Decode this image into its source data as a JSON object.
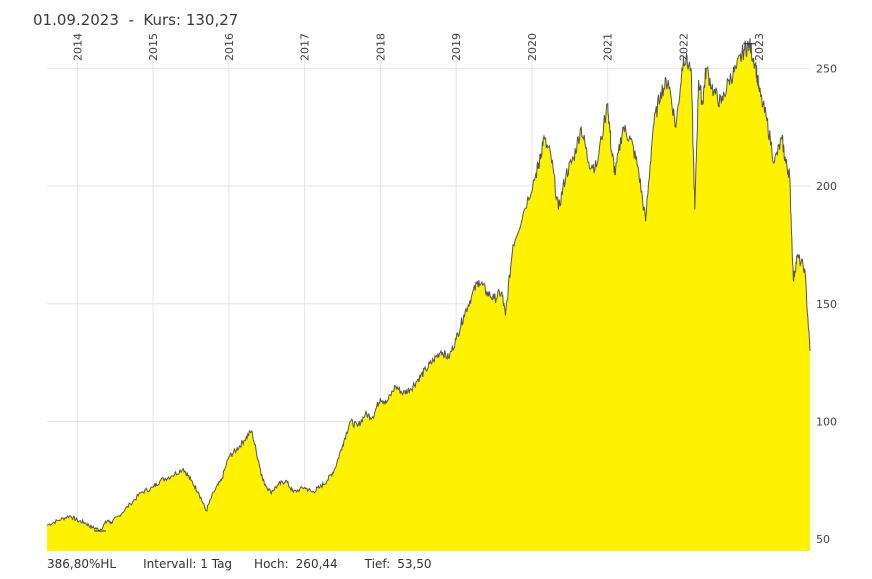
{
  "header": {
    "date": "01.09.2023",
    "separator": "-",
    "kurs_label": "Kurs:",
    "kurs_value": "130,27"
  },
  "footer": {
    "performance": "386,80%HL",
    "interval_label": "Intervall:",
    "interval_value": "1 Tag",
    "high_label": "Hoch:",
    "high_value": "260,44",
    "low_label": "Tief:",
    "low_value": "53,50"
  },
  "colors": {
    "area_fill": "#fff200",
    "line": "#555555",
    "grid": "#e6e6e6"
  },
  "chart_data": {
    "type": "area",
    "title": "01.09.2023 - Kurs: 130,27",
    "xlabel": "",
    "ylabel": "",
    "x_start": 2013.6,
    "x_end": 2023.67,
    "ylim": [
      45,
      265
    ],
    "y_ticks": [
      50,
      100,
      150,
      200,
      250
    ],
    "year_labels": [
      "2014",
      "2015",
      "2016",
      "2017",
      "2018",
      "2019",
      "2020",
      "2021",
      "2022",
      "2023"
    ],
    "year_positions": [
      2014,
      2015,
      2016,
      2017,
      2018,
      2019,
      2020,
      2021,
      2022,
      2023
    ],
    "high": {
      "value": 260.44,
      "date": 2022.87
    },
    "low": {
      "value": 53.5,
      "date": 2014.3
    },
    "x": [
      2013.6,
      2013.75,
      2013.9,
      2014.0,
      2014.1,
      2014.2,
      2014.3,
      2014.4,
      2014.45,
      2014.55,
      2014.7,
      2014.85,
      2015.0,
      2015.1,
      2015.25,
      2015.4,
      2015.5,
      2015.6,
      2015.7,
      2015.8,
      2015.9,
      2016.0,
      2016.1,
      2016.2,
      2016.3,
      2016.4,
      2016.45,
      2016.55,
      2016.65,
      2016.75,
      2016.85,
      2017.0,
      2017.1,
      2017.2,
      2017.3,
      2017.4,
      2017.5,
      2017.6,
      2017.7,
      2017.8,
      2017.9,
      2018.0,
      2018.08,
      2018.2,
      2018.3,
      2018.4,
      2018.5,
      2018.6,
      2018.7,
      2018.8,
      2018.9,
      2019.0,
      2019.1,
      2019.2,
      2019.3,
      2019.4,
      2019.5,
      2019.6,
      2019.65,
      2019.75,
      2019.9,
      2020.05,
      2020.1,
      2020.15,
      2020.25,
      2020.35,
      2020.45,
      2020.55,
      2020.65,
      2020.75,
      2020.85,
      2021.0,
      2021.05,
      2021.1,
      2021.2,
      2021.3,
      2021.4,
      2021.5,
      2021.6,
      2021.7,
      2021.8,
      2021.9,
      2022.0,
      2022.1,
      2022.15,
      2022.2,
      2022.25,
      2022.3,
      2022.4,
      2022.5,
      2022.6,
      2022.7,
      2022.8,
      2022.87,
      2022.95,
      2023.0,
      2023.1,
      2023.2,
      2023.3,
      2023.35,
      2023.4,
      2023.45,
      2023.5,
      2023.6,
      2023.67
    ],
    "values": [
      56,
      58,
      60,
      58,
      57,
      55,
      54,
      58,
      57,
      60,
      65,
      70,
      72,
      75,
      77,
      80,
      75,
      70,
      62,
      70,
      75,
      85,
      88,
      92,
      96,
      82,
      75,
      70,
      73,
      75,
      70,
      72,
      70,
      72,
      75,
      80,
      90,
      100,
      98,
      103,
      102,
      110,
      108,
      115,
      112,
      114,
      118,
      122,
      126,
      130,
      127,
      135,
      145,
      153,
      160,
      155,
      152,
      155,
      145,
      175,
      190,
      205,
      210,
      220,
      213,
      190,
      205,
      212,
      225,
      210,
      208,
      235,
      215,
      205,
      225,
      220,
      208,
      185,
      225,
      240,
      245,
      225,
      255,
      250,
      190,
      245,
      235,
      250,
      240,
      235,
      245,
      250,
      258,
      260,
      252,
      240,
      228,
      210,
      220,
      210,
      205,
      160,
      170,
      165,
      130
    ]
  }
}
